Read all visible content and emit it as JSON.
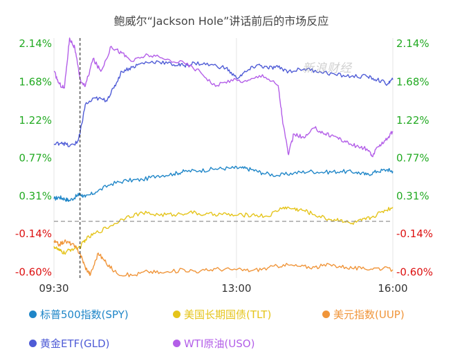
{
  "chart_data": {
    "type": "line",
    "title": "鲍威尔“Jackson Hole”讲话前后的市场反应",
    "watermark": "新浪财经",
    "x_ticks": [
      "09:30",
      "13:00",
      "16:00"
    ],
    "y_ticks": [
      {
        "label": "2.14%",
        "value": 2.14
      },
      {
        "label": "1.68%",
        "value": 1.68
      },
      {
        "label": "1.22%",
        "value": 1.22
      },
      {
        "label": "0.77%",
        "value": 0.77
      },
      {
        "label": "0.31%",
        "value": 0.31
      },
      {
        "label": "-0.14%",
        "value": -0.14
      },
      {
        "label": "-0.60%",
        "value": -0.6
      }
    ],
    "ylim": [
      -0.68,
      2.2
    ],
    "x_range_hours": [
      9.5,
      16.0
    ],
    "zero_line": 0.0,
    "event_marker_time": 10.0,
    "colors": {
      "positive": "#22aa22",
      "negative": "#dd1111",
      "spy": "#1f86c8",
      "tlt": "#e5c41a",
      "uup": "#f0953a",
      "gld": "#4e5bd6",
      "uso": "#b35ee8"
    },
    "series": [
      {
        "key": "spy",
        "name": "标普500指数(SPY)",
        "points": [
          [
            9.5,
            0.27
          ],
          [
            9.6,
            0.29
          ],
          [
            9.7,
            0.27
          ],
          [
            9.8,
            0.25
          ],
          [
            9.95,
            0.31
          ],
          [
            10.0,
            0.33
          ],
          [
            10.1,
            0.29
          ],
          [
            10.3,
            0.35
          ],
          [
            10.6,
            0.45
          ],
          [
            10.9,
            0.49
          ],
          [
            11.2,
            0.5
          ],
          [
            11.5,
            0.55
          ],
          [
            11.8,
            0.57
          ],
          [
            12.0,
            0.6
          ],
          [
            12.3,
            0.61
          ],
          [
            12.6,
            0.63
          ],
          [
            12.9,
            0.64
          ],
          [
            13.1,
            0.64
          ],
          [
            13.3,
            0.62
          ],
          [
            13.5,
            0.58
          ],
          [
            13.8,
            0.55
          ],
          [
            14.1,
            0.58
          ],
          [
            14.4,
            0.6
          ],
          [
            14.7,
            0.59
          ],
          [
            15.0,
            0.6
          ],
          [
            15.3,
            0.59
          ],
          [
            15.5,
            0.56
          ],
          [
            15.7,
            0.6
          ],
          [
            15.9,
            0.62
          ],
          [
            16.0,
            0.6
          ]
        ]
      },
      {
        "key": "tlt",
        "name": "美国长期国债(TLT)",
        "points": [
          [
            9.5,
            -0.3
          ],
          [
            9.6,
            -0.35
          ],
          [
            9.7,
            -0.38
          ],
          [
            9.85,
            -0.33
          ],
          [
            10.0,
            -0.31
          ],
          [
            10.1,
            -0.22
          ],
          [
            10.3,
            -0.14
          ],
          [
            10.6,
            -0.05
          ],
          [
            10.9,
            0.06
          ],
          [
            11.2,
            0.1
          ],
          [
            11.5,
            0.08
          ],
          [
            11.8,
            0.08
          ],
          [
            12.1,
            0.11
          ],
          [
            12.4,
            0.08
          ],
          [
            12.7,
            0.09
          ],
          [
            13.0,
            0.07
          ],
          [
            13.3,
            0.08
          ],
          [
            13.6,
            0.06
          ],
          [
            13.9,
            0.17
          ],
          [
            14.1,
            0.15
          ],
          [
            14.3,
            0.13
          ],
          [
            14.5,
            0.08
          ],
          [
            14.8,
            0.02
          ],
          [
            15.0,
            0.02
          ],
          [
            15.2,
            -0.03
          ],
          [
            15.4,
            0.01
          ],
          [
            15.6,
            0.05
          ],
          [
            15.8,
            0.12
          ],
          [
            16.0,
            0.17
          ]
        ]
      },
      {
        "key": "uup",
        "name": "美元指数(UUP)",
        "points": [
          [
            9.5,
            -0.24
          ],
          [
            9.6,
            -0.28
          ],
          [
            9.7,
            -0.24
          ],
          [
            9.85,
            -0.27
          ],
          [
            10.0,
            -0.38
          ],
          [
            10.1,
            -0.55
          ],
          [
            10.2,
            -0.64
          ],
          [
            10.35,
            -0.38
          ],
          [
            10.5,
            -0.5
          ],
          [
            10.7,
            -0.62
          ],
          [
            11.0,
            -0.65
          ],
          [
            11.3,
            -0.6
          ],
          [
            11.6,
            -0.62
          ],
          [
            12.0,
            -0.58
          ],
          [
            12.3,
            -0.6
          ],
          [
            12.6,
            -0.57
          ],
          [
            13.0,
            -0.58
          ],
          [
            13.3,
            -0.59
          ],
          [
            13.6,
            -0.56
          ],
          [
            13.9,
            -0.52
          ],
          [
            14.2,
            -0.54
          ],
          [
            14.5,
            -0.55
          ],
          [
            14.8,
            -0.52
          ],
          [
            15.1,
            -0.55
          ],
          [
            15.4,
            -0.57
          ],
          [
            15.7,
            -0.56
          ],
          [
            16.0,
            -0.58
          ]
        ]
      },
      {
        "key": "gld",
        "name": "黄金ETF(GLD)",
        "points": [
          [
            9.5,
            0.92
          ],
          [
            9.65,
            0.95
          ],
          [
            9.8,
            0.9
          ],
          [
            9.95,
            0.95
          ],
          [
            10.0,
            1.05
          ],
          [
            10.1,
            1.4
          ],
          [
            10.3,
            1.48
          ],
          [
            10.5,
            1.45
          ],
          [
            10.65,
            1.6
          ],
          [
            10.8,
            1.8
          ],
          [
            11.0,
            1.85
          ],
          [
            11.2,
            1.9
          ],
          [
            11.5,
            1.92
          ],
          [
            11.8,
            1.88
          ],
          [
            12.0,
            1.87
          ],
          [
            12.2,
            1.9
          ],
          [
            12.5,
            1.88
          ],
          [
            12.8,
            1.84
          ],
          [
            13.0,
            1.72
          ],
          [
            13.2,
            1.8
          ],
          [
            13.4,
            1.88
          ],
          [
            13.6,
            1.84
          ],
          [
            13.8,
            1.85
          ],
          [
            14.0,
            1.8
          ],
          [
            14.3,
            1.83
          ],
          [
            14.6,
            1.8
          ],
          [
            14.9,
            1.76
          ],
          [
            15.2,
            1.74
          ],
          [
            15.5,
            1.74
          ],
          [
            15.7,
            1.7
          ],
          [
            15.9,
            1.65
          ],
          [
            16.0,
            1.7
          ]
        ]
      },
      {
        "key": "uso",
        "name": "WTI原油(USO)",
        "points": [
          [
            9.5,
            1.8
          ],
          [
            9.6,
            1.65
          ],
          [
            9.7,
            1.6
          ],
          [
            9.8,
            2.2
          ],
          [
            9.9,
            2.08
          ],
          [
            10.0,
            1.7
          ],
          [
            10.1,
            1.62
          ],
          [
            10.25,
            1.95
          ],
          [
            10.4,
            1.8
          ],
          [
            10.6,
            2.1
          ],
          [
            10.8,
            2.02
          ],
          [
            11.0,
            1.92
          ],
          [
            11.3,
            2.0
          ],
          [
            11.6,
            1.95
          ],
          [
            12.0,
            1.9
          ],
          [
            12.3,
            1.8
          ],
          [
            12.6,
            1.62
          ],
          [
            12.9,
            1.7
          ],
          [
            13.2,
            1.68
          ],
          [
            13.5,
            1.76
          ],
          [
            13.8,
            1.63
          ],
          [
            13.9,
            1.15
          ],
          [
            14.0,
            0.8
          ],
          [
            14.1,
            1.05
          ],
          [
            14.3,
            1.0
          ],
          [
            14.5,
            1.12
          ],
          [
            14.7,
            1.05
          ],
          [
            14.9,
            1.02
          ],
          [
            15.1,
            0.95
          ],
          [
            15.3,
            0.9
          ],
          [
            15.5,
            0.87
          ],
          [
            15.6,
            0.78
          ],
          [
            15.75,
            0.92
          ],
          [
            15.9,
            1.0
          ],
          [
            16.0,
            1.08
          ]
        ]
      }
    ]
  }
}
